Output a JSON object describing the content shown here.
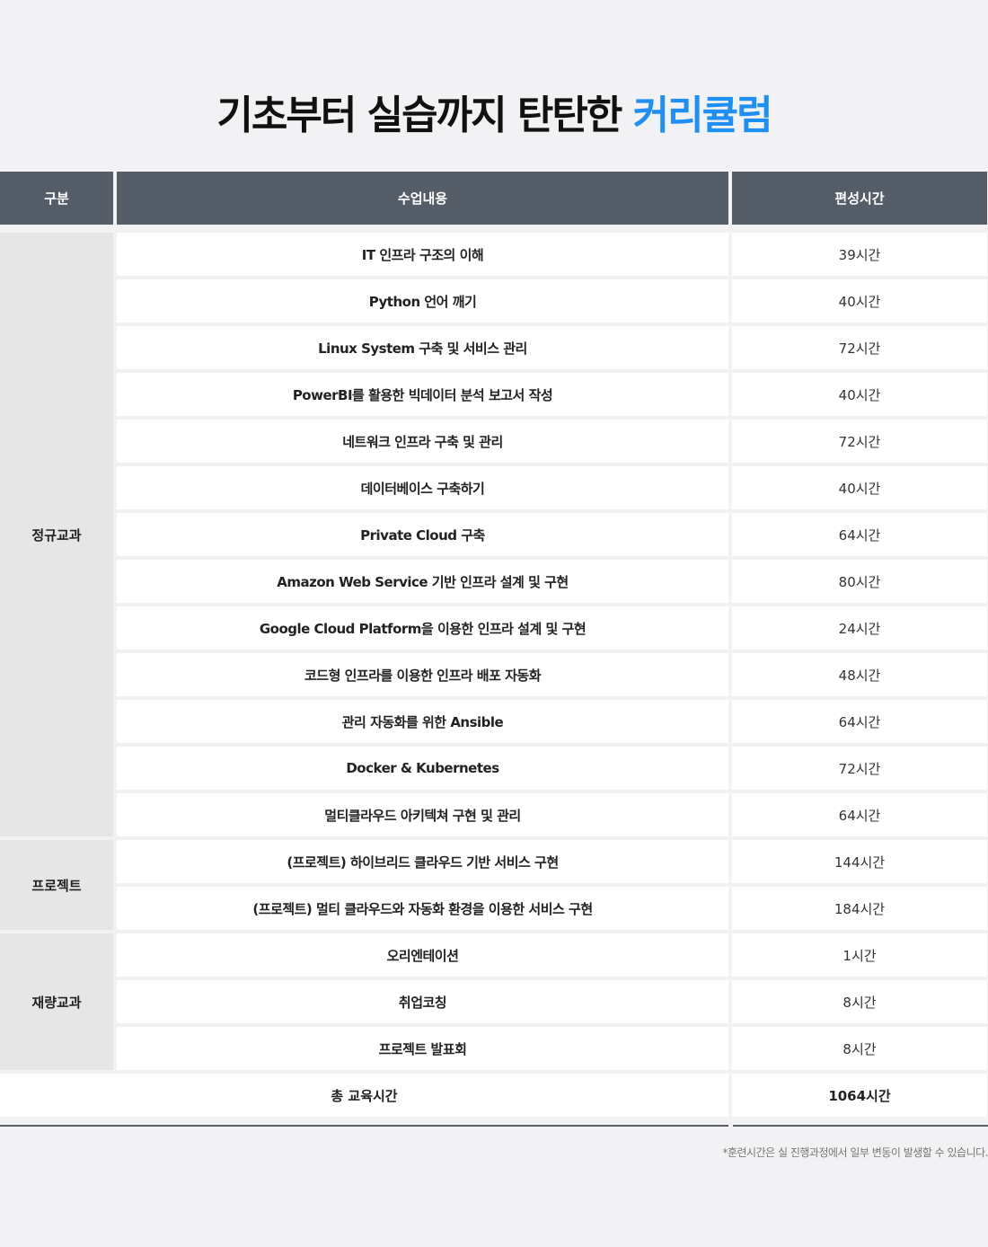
{
  "title": {
    "main": "기초부터 실습까지 탄탄한",
    "accent": "커리큘럼"
  },
  "colors": {
    "accent": "#1e8ff5",
    "header_bg": "#555d69",
    "category_bg": "#e6e6e6"
  },
  "header": {
    "category": "구분",
    "content": "수업내용",
    "hours": "편성시간"
  },
  "groups": [
    {
      "label": "정규교과",
      "rows": [
        {
          "name": "IT 인프라 구조의 이해",
          "hours": "39시간"
        },
        {
          "name": "Python 언어 깨기",
          "hours": "40시간"
        },
        {
          "name": "Linux System 구축 및 서비스 관리",
          "hours": "72시간"
        },
        {
          "name": "PowerBI를 활용한 빅데이터 분석 보고서 작성",
          "hours": "40시간"
        },
        {
          "name": "네트워크 인프라 구축 및 관리",
          "hours": "72시간"
        },
        {
          "name": "데이터베이스 구축하기",
          "hours": "40시간"
        },
        {
          "name": "Private Cloud 구축",
          "hours": "64시간"
        },
        {
          "name": "Amazon Web Service 기반 인프라 설계 및 구현",
          "hours": "80시간"
        },
        {
          "name": "Google Cloud Platform을 이용한 인프라 설계 및 구현",
          "hours": "24시간"
        },
        {
          "name": "코드형 인프라를 이용한 인프라 배포 자동화",
          "hours": "48시간"
        },
        {
          "name": "관리 자동화를 위한 Ansible",
          "hours": "64시간"
        },
        {
          "name": "Docker & Kubernetes",
          "hours": "72시간"
        },
        {
          "name": "멀티클라우드 아키텍쳐 구현 및 관리",
          "hours": "64시간"
        }
      ]
    },
    {
      "label": "프로젝트",
      "rows": [
        {
          "name": "(프로젝트) 하이브리드 클라우드 기반 서비스 구현",
          "hours": "144시간"
        },
        {
          "name": "(프로젝트) 멀티 클라우드와 자동화 환경을 이용한 서비스 구현",
          "hours": "184시간"
        }
      ]
    },
    {
      "label": "재량교과",
      "rows": [
        {
          "name": "오리엔테이션",
          "hours": "1시간"
        },
        {
          "name": "취업코칭",
          "hours": "8시간"
        },
        {
          "name": "프로젝트 발표회",
          "hours": "8시간"
        }
      ]
    }
  ],
  "total": {
    "label": "총 교육시간",
    "hours": "1064시간"
  },
  "note": "*훈련시간은 실 진행과정에서 일부 변동이 발생할 수 있습니다."
}
